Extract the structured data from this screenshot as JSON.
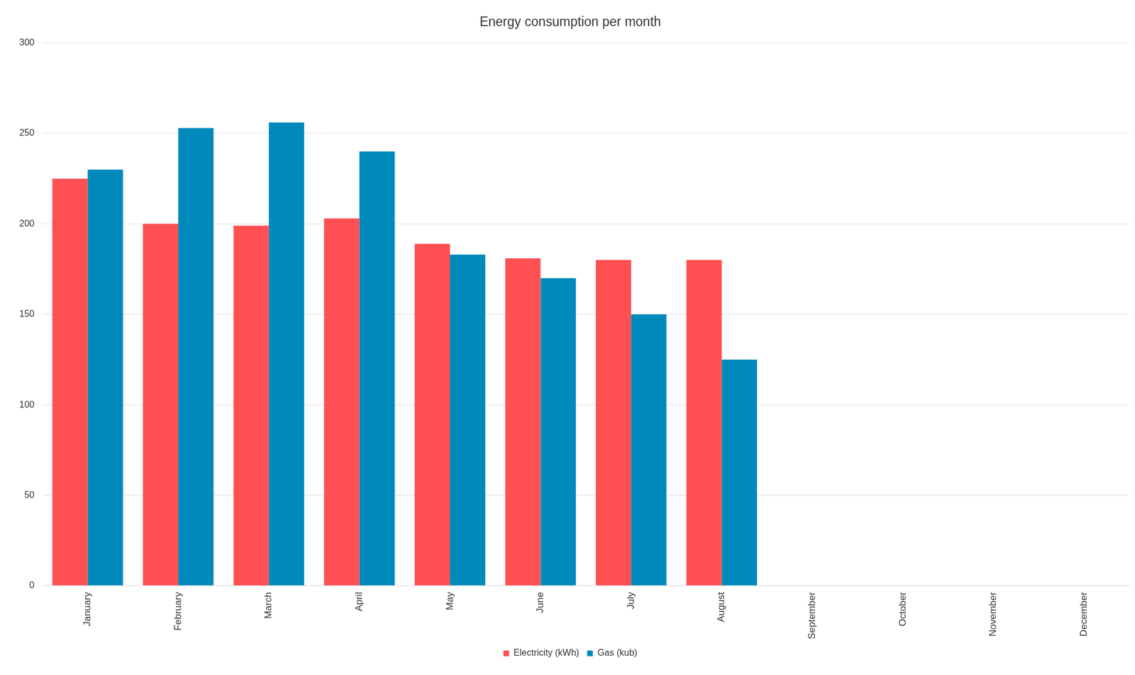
{
  "chart_data": {
    "type": "bar",
    "title": "Energy consumption per month",
    "categories": [
      "January",
      "February",
      "March",
      "April",
      "May",
      "June",
      "July",
      "August",
      "September",
      "October",
      "November",
      "December"
    ],
    "series": [
      {
        "name": "Electricity (kWh)",
        "color": "#fe5053",
        "values": [
          225,
          200,
          199,
          203,
          189,
          181,
          180,
          180,
          null,
          null,
          null,
          null
        ]
      },
      {
        "name": "Gas (kub)",
        "color": "#008abc",
        "values": [
          230,
          253,
          256,
          240,
          183,
          170,
          150,
          125,
          null,
          null,
          null,
          null
        ]
      }
    ],
    "ylim": [
      0,
      300
    ],
    "yticks": [
      0,
      50,
      100,
      150,
      200,
      250,
      300
    ],
    "grid": true,
    "legend": "bottom"
  }
}
